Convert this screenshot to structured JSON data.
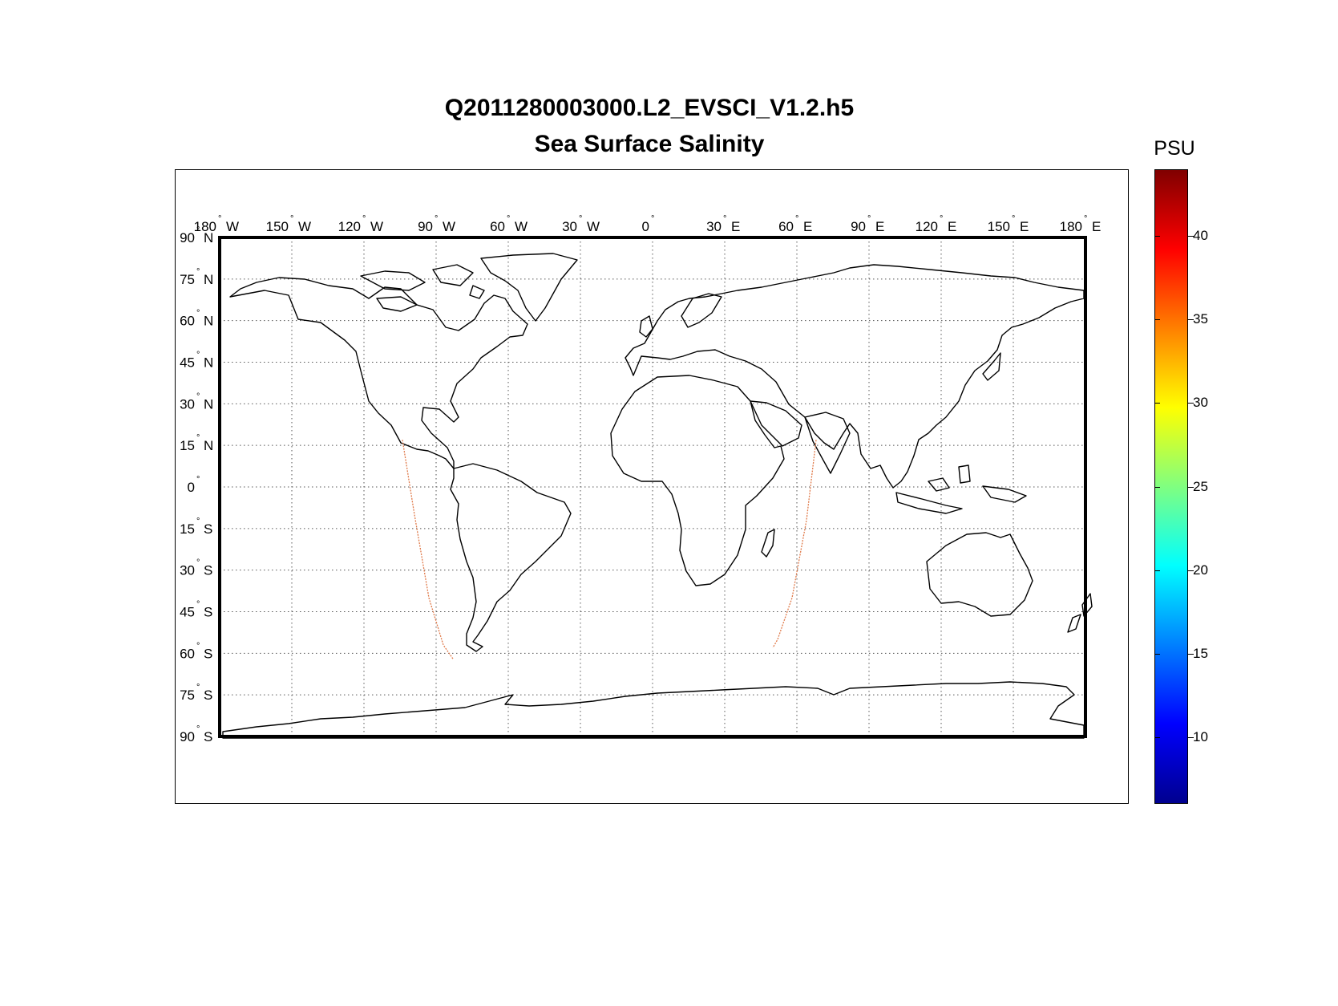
{
  "map": {
    "title_line1": "Q2011280003000.L2_EVSCI_V1.2.h5",
    "title_line2": "Sea Surface Salinity",
    "projection": "equirectangular",
    "extent": {
      "lon": [
        -180,
        180
      ],
      "lat": [
        -90,
        90
      ]
    },
    "grid": "dotted, every 30 deg lon, 15 deg lat",
    "lon_labels": [
      {
        "lon": -180,
        "num": "180",
        "hem": "W"
      },
      {
        "lon": -150,
        "num": "150",
        "hem": "W"
      },
      {
        "lon": -120,
        "num": "120",
        "hem": "W"
      },
      {
        "lon": -90,
        "num": "90",
        "hem": "W"
      },
      {
        "lon": -60,
        "num": "60",
        "hem": "W"
      },
      {
        "lon": -30,
        "num": "30",
        "hem": "W"
      },
      {
        "lon": 0,
        "num": "0",
        "hem": ""
      },
      {
        "lon": 30,
        "num": "30",
        "hem": "E"
      },
      {
        "lon": 60,
        "num": "60",
        "hem": "E"
      },
      {
        "lon": 90,
        "num": "90",
        "hem": "E"
      },
      {
        "lon": 120,
        "num": "120",
        "hem": "E"
      },
      {
        "lon": 150,
        "num": "150",
        "hem": "E"
      },
      {
        "lon": 180,
        "num": "180",
        "hem": "E"
      }
    ],
    "lat_labels": [
      {
        "lat": 90,
        "num": "90",
        "hem": "N"
      },
      {
        "lat": 75,
        "num": "75",
        "hem": "N"
      },
      {
        "lat": 60,
        "num": "60",
        "hem": "N"
      },
      {
        "lat": 45,
        "num": "45",
        "hem": "N"
      },
      {
        "lat": 30,
        "num": "30",
        "hem": "N"
      },
      {
        "lat": 15,
        "num": "15",
        "hem": "N"
      },
      {
        "lat": 0,
        "num": "0",
        "hem": ""
      },
      {
        "lat": -15,
        "num": "15",
        "hem": "S"
      },
      {
        "lat": -30,
        "num": "30",
        "hem": "S"
      },
      {
        "lat": -45,
        "num": "45",
        "hem": "S"
      },
      {
        "lat": -60,
        "num": "60",
        "hem": "S"
      },
      {
        "lat": -75,
        "num": "75",
        "hem": "S"
      },
      {
        "lat": -90,
        "num": "90",
        "hem": "S"
      }
    ],
    "swath_tracks": [
      {
        "color": "#e07a4a",
        "points": [
          [
            -104,
            17
          ],
          [
            -99,
            -10
          ],
          [
            -93,
            -40
          ],
          [
            -87,
            -57
          ],
          [
            -83,
            -62
          ]
        ]
      },
      {
        "color": "#e07a4a",
        "points": [
          [
            68,
            17
          ],
          [
            64,
            -12
          ],
          [
            58,
            -40
          ],
          [
            52,
            -55
          ],
          [
            50,
            -58
          ]
        ]
      }
    ]
  },
  "colorbar": {
    "unit": "PSU",
    "min": 6,
    "max": 44,
    "colors": [
      "#00008f",
      "#0000ff",
      "#0080ff",
      "#00ffff",
      "#80ff80",
      "#ffff00",
      "#ff8000",
      "#ff0000",
      "#800000"
    ],
    "ticks": [
      {
        "value": 10,
        "label": "10"
      },
      {
        "value": 15,
        "label": "15"
      },
      {
        "value": 20,
        "label": "20"
      },
      {
        "value": 25,
        "label": "25"
      },
      {
        "value": 30,
        "label": "30"
      },
      {
        "value": 35,
        "label": "35"
      },
      {
        "value": 40,
        "label": "40"
      }
    ]
  }
}
